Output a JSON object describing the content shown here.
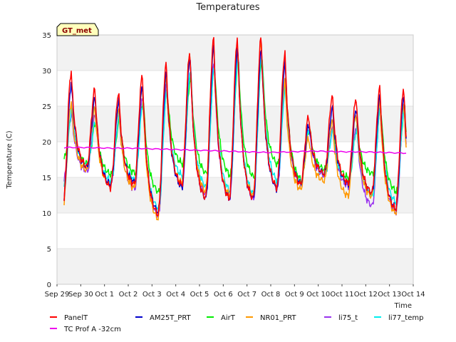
{
  "chart_data": {
    "type": "line",
    "title": "Temperatures",
    "xlabel": "Time",
    "ylabel": "Temperature (C)",
    "badge": "GT_met",
    "x_unit": "days",
    "x_tick_labels": [
      "Sep 29",
      "Sep 30",
      "Oct 1",
      "Oct 2",
      "Oct 3",
      "Oct 4",
      "Oct 5",
      "Oct 6",
      "Oct 7",
      "Oct 8",
      "Oct 9",
      "Oct 10",
      "Oct 11",
      "Oct 12",
      "Oct 13",
      "Oct 14"
    ],
    "xlim": [
      "Sep 29",
      "Oct 14"
    ],
    "ylim": [
      0,
      35
    ],
    "y_ticks": [
      0,
      5,
      10,
      15,
      20,
      25,
      30,
      35
    ],
    "grid": "alternating horizontal bands",
    "legend_position": "bottom",
    "series": [
      {
        "name": "PanelT",
        "color": "#ff0000",
        "daily_max": [
          29.8,
          27.4,
          26.9,
          29.3,
          31.0,
          32.6,
          34.4,
          34.6,
          34.7,
          32.4,
          23.6,
          26.4,
          26.1,
          27.6
        ],
        "daily_min": [
          11.0,
          16.5,
          13.6,
          14.0,
          9.8,
          13.9,
          12.1,
          12.0,
          12.0,
          13.6,
          14.0,
          15.5,
          14.2,
          12.8,
          10.5
        ]
      },
      {
        "name": "TC Prof A -32cm",
        "color": "#ee00ee",
        "values": [
          19.2,
          19.2,
          19.1,
          19.1,
          19.0,
          18.9,
          18.8,
          18.7,
          18.6,
          18.5,
          18.6,
          18.7,
          18.6,
          18.6,
          18.5,
          18.4
        ]
      },
      {
        "name": "AM25T_PRT",
        "color": "#0000cc",
        "daily_max": [
          28.2,
          26.2,
          25.7,
          27.9,
          29.7,
          31.9,
          33.4,
          33.2,
          33.0,
          31.0,
          22.5,
          24.7,
          24.7,
          26.4
        ],
        "daily_min": [
          11.4,
          16.4,
          13.9,
          14.3,
          10.1,
          13.6,
          12.0,
          12.0,
          12.0,
          13.4,
          14.1,
          15.6,
          14.1,
          12.8,
          10.6
        ]
      },
      {
        "name": "AirT",
        "color": "#00ee00",
        "daily_max": [
          24.0,
          22.7,
          23.1,
          25.8,
          27.3,
          29.1,
          30.6,
          31.5,
          31.8,
          28.6,
          22.0,
          21.8,
          21.9,
          24.6
        ],
        "daily_min": [
          17.6,
          16.9,
          15.4,
          15.6,
          12.9,
          16.9,
          15.5,
          15.3,
          15.0,
          16.8,
          14.6,
          16.1,
          14.9,
          15.5,
          13.0
        ]
      },
      {
        "name": "NR01_PRT",
        "color": "#ff9900",
        "daily_max": [
          25.5,
          24.7,
          24.7,
          27.6,
          29.0,
          32.6,
          33.6,
          33.6,
          34.0,
          28.5,
          20.6,
          23.0,
          23.9,
          25.5
        ],
        "daily_min": [
          10.6,
          16.0,
          13.8,
          13.5,
          9.2,
          14.2,
          13.0,
          12.5,
          12.4,
          13.6,
          13.3,
          14.5,
          12.4,
          12.3,
          10.0
        ]
      },
      {
        "name": "li75_t",
        "color": "#9933ee",
        "daily_max": [
          24.0,
          23.8,
          23.6,
          26.5,
          28.0,
          30.2,
          30.9,
          32.5,
          33.0,
          27.9,
          21.9,
          21.8,
          22.3,
          24.7
        ],
        "daily_min": [
          14.4,
          15.8,
          13.9,
          13.4,
          9.5,
          13.8,
          12.6,
          12.0,
          11.8,
          13.4,
          14.0,
          15.2,
          13.8,
          11.0,
          10.1
        ]
      },
      {
        "name": "li77_temp",
        "color": "#00eeee",
        "daily_max": [
          24.6,
          22.9,
          23.6,
          25.3,
          27.0,
          30.2,
          30.5,
          31.9,
          32.3,
          27.6,
          22.0,
          21.5,
          21.7,
          24.8
        ],
        "daily_min": [
          13.7,
          16.6,
          14.5,
          14.6,
          10.6,
          15.2,
          13.6,
          13.1,
          12.6,
          14.5,
          14.2,
          15.5,
          14.2,
          12.4,
          11.5
        ]
      }
    ]
  }
}
